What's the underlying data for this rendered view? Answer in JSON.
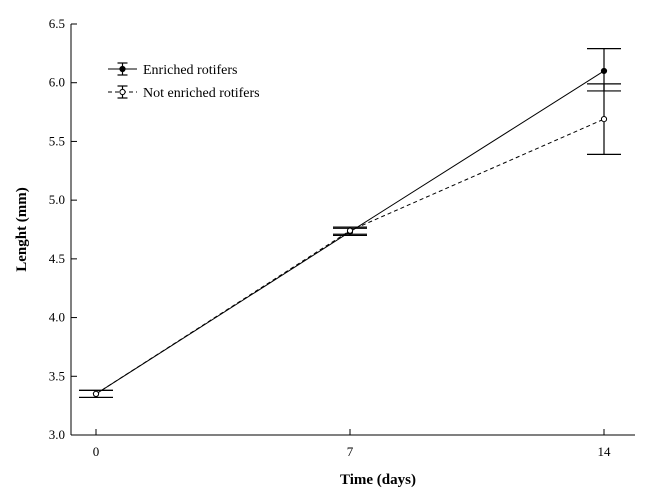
{
  "chart_data": {
    "type": "line",
    "xlabel": "Time (days)",
    "ylabel": "Lenght (mm)",
    "x": [
      0,
      7,
      14
    ],
    "x_ticks": [
      "0",
      "7",
      "14"
    ],
    "ylim": [
      3.0,
      6.5
    ],
    "y_ticks": [
      "3.0",
      "3.5",
      "4.0",
      "4.5",
      "5.0",
      "5.5",
      "6.0",
      "6.5"
    ],
    "grid": false,
    "legend_position": "top-left",
    "series": [
      {
        "name": "Enriched rotifers",
        "marker": "filled-circle",
        "line_style": "solid",
        "values": [
          3.35,
          4.73,
          6.1
        ],
        "error_low": [
          3.32,
          4.7,
          5.93
        ],
        "error_high": [
          3.38,
          4.76,
          6.29
        ]
      },
      {
        "name": "Not enriched rotifers",
        "marker": "open-circle",
        "line_style": "dashed",
        "values": [
          3.35,
          4.74,
          5.69
        ],
        "error_low": [
          3.32,
          4.71,
          5.39
        ],
        "error_high": [
          3.38,
          4.77,
          5.99
        ]
      }
    ]
  }
}
